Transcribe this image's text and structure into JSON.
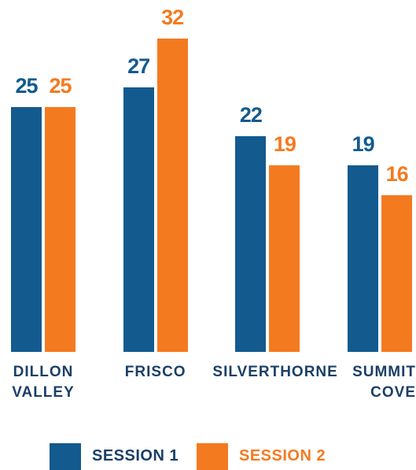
{
  "chart_data": {
    "type": "bar",
    "categories": [
      "DILLON\nVALLEY",
      "FRISCO",
      "SILVERTHORNE",
      "SUMMIT\nCOVE"
    ],
    "series": [
      {
        "name": "SESSION 1",
        "color": "#135a8f",
        "values": [
          25,
          27,
          22,
          19
        ]
      },
      {
        "name": "SESSION 2",
        "color": "#f47a20",
        "values": [
          25,
          32,
          19,
          16
        ]
      }
    ]
  }
}
